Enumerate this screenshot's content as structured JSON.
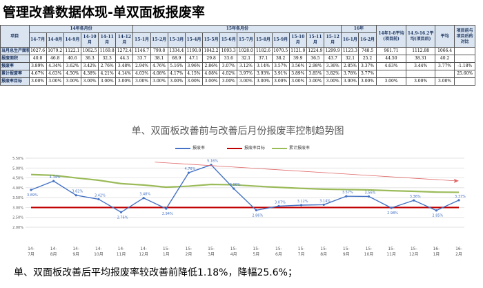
{
  "page_title": "管理改善数据体现-单双面板报废率",
  "table": {
    "item_header": "项目",
    "group_headers": [
      "14年各月份",
      "15年各月份",
      "16年",
      "14年1-8平均(项目前)",
      "14.9-16.2平均(项目后)",
      "平均",
      "项目前与项目后的对比"
    ],
    "months": [
      "14-7月",
      "14-8月",
      "14-9月",
      "14-10月",
      "14-11月",
      "14-12月",
      "15-1月",
      "15-2月",
      "15-3月",
      "15-4月",
      "15-5月",
      "15-6月",
      "15-7月",
      "15-8月",
      "15-9月",
      "15-10月",
      "15-11月",
      "15-12月",
      "16-1月",
      "16-2月"
    ],
    "rows": [
      {
        "label": "当月总生产面积",
        "cells": [
          "1027.6",
          "1079.2",
          "1122.1",
          "1062.5",
          "1169.8",
          "1272.4",
          "1146.7",
          "799.8",
          "1334.4",
          "1190.0",
          "1042.2",
          "1093.3",
          "1028.0",
          "1182.6",
          "1070.5",
          "1121.0",
          "1224.9",
          "1299.9",
          "1123.3",
          "748.5",
          "961.71",
          "1112.88",
          "1066.4",
          ""
        ]
      },
      {
        "label": "报废面积",
        "cells": [
          "40.0",
          "46.8",
          "40.6",
          "36.3",
          "32.3",
          "44.3",
          "33.7",
          "38.1",
          "68.9",
          "47.1",
          "29.8",
          "33.6",
          "32.1",
          "37.1",
          "38.2",
          "39.9",
          "36.5",
          "43.7",
          "32.1",
          "25.2",
          "44.50",
          "38.31",
          "40.2",
          ""
        ]
      },
      {
        "label": "报废率",
        "cells": [
          "3.89%",
          "4.34%",
          "3.62%",
          "3.42%",
          "2.76%",
          "3.48%",
          "2.94%",
          "4.76%",
          "5.16%",
          "3.96%",
          "2.86%",
          "3.07%",
          "3.12%",
          "3.14%",
          "3.57%",
          "3.56%",
          "2.98%",
          "3.36%",
          "2.85%",
          "3.37%",
          "4.63%",
          "3.44%",
          "3.77%",
          "-1.18%"
        ]
      },
      {
        "label": "累计报废率",
        "cells": [
          "4.67%",
          "4.63%",
          "4.50%",
          "4.38%",
          "4.21%",
          "4.14%",
          "4.03%",
          "4.08%",
          "4.17%",
          "4.15%",
          "4.08%",
          "4.02%",
          "3.97%",
          "3.93%",
          "3.91%",
          "3.89%",
          "3.85%",
          "3.82%",
          "3.78%",
          "3.77%",
          "",
          "",
          "",
          "25.60%"
        ]
      },
      {
        "label": "报废率目标",
        "cells": [
          "3.00%",
          "3.00%",
          "3.00%",
          "3.00%",
          "3.00%",
          "3.00%",
          "3.00%",
          "3.00%",
          "3.00%",
          "3.00%",
          "3.00%",
          "3.00%",
          "3.00%",
          "3.00%",
          "3.00%",
          "3.00%",
          "3.00%",
          "3.00%",
          "3.00%",
          "3.00%",
          "3.00%",
          "3.00%",
          "3.00%",
          ""
        ]
      }
    ]
  },
  "chart_data": {
    "type": "line",
    "title": "单、双面板改善前与改善后月份报废率控制趋势图",
    "categories": [
      "14-7月",
      "14-8月",
      "14-9月",
      "14-10月",
      "14-11月",
      "14-12月",
      "15-1月",
      "15-2月",
      "15-3月",
      "15-4月",
      "15-5月",
      "15-6月",
      "15-7月",
      "15-8月",
      "15-9月",
      "15-10月",
      "15-11月",
      "15-12月",
      "16-1月",
      "16-2月"
    ],
    "category_labels": [
      [
        "14-",
        "7月"
      ],
      [
        "14-",
        "8月"
      ],
      [
        "14-",
        "9月"
      ],
      [
        "14-",
        "10月"
      ],
      [
        "14-",
        "11月"
      ],
      [
        "14-",
        "12月"
      ],
      [
        "15-",
        "1月"
      ],
      [
        "15-",
        "2月"
      ],
      [
        "15-",
        "3月"
      ],
      [
        "15-",
        "4月"
      ],
      [
        "15-",
        "5月"
      ],
      [
        "15-",
        "6月"
      ],
      [
        "15-",
        "7月"
      ],
      [
        "15-",
        "8月"
      ],
      [
        "15-",
        "9月"
      ],
      [
        "15-",
        "10月"
      ],
      [
        "15-",
        "11月"
      ],
      [
        "15-",
        "12月"
      ],
      [
        "16-",
        "1月"
      ],
      [
        "16-",
        "2月"
      ]
    ],
    "series": [
      {
        "name": "报废率",
        "color": "#4472c4",
        "values": [
          3.89,
          4.34,
          3.62,
          3.42,
          2.76,
          3.48,
          2.94,
          4.76,
          5.16,
          3.96,
          2.86,
          3.07,
          3.12,
          3.14,
          3.57,
          3.56,
          2.98,
          3.36,
          2.85,
          3.37
        ],
        "labels": [
          "3.89%",
          "4.34%",
          "3.62%",
          "3.42%",
          "2.76%",
          "3.48%",
          "2.94%",
          "4.76%",
          "5.16%",
          "3.96%",
          "2.86%",
          "3.07%",
          "3.12%",
          "3.14%",
          "3.57%",
          "3.56%",
          "2.98%",
          "3.36%",
          "2.85%",
          "3.37%"
        ]
      },
      {
        "name": "报废率目标",
        "color": "#c00000",
        "values": [
          3.0,
          3.0,
          3.0,
          3.0,
          3.0,
          3.0,
          3.0,
          3.0,
          3.0,
          3.0,
          3.0,
          3.0,
          3.0,
          3.0,
          3.0,
          3.0,
          3.0,
          3.0,
          3.0,
          3.0
        ]
      },
      {
        "name": "累计报废率",
        "color": "#9bbb59",
        "values": [
          4.67,
          4.63,
          4.5,
          4.38,
          4.21,
          4.14,
          4.03,
          4.08,
          4.17,
          4.15,
          4.08,
          4.02,
          3.97,
          3.93,
          3.91,
          3.89,
          3.85,
          3.82,
          3.78,
          3.77
        ]
      }
    ],
    "trend_arrow": {
      "color": "#e06666",
      "from": 5.3,
      "to": 4.35
    },
    "ylim": [
      2.0,
      5.5
    ],
    "yticks": [
      2.0,
      2.5,
      3.0,
      3.5,
      4.0,
      4.5,
      5.0,
      5.5
    ],
    "ytick_labels": [
      "2.00%",
      "2.50%",
      "3.00%",
      "3.50%",
      "4.00%",
      "4.50%",
      "5.00%",
      "5.50%"
    ],
    "grid": true,
    "legend": "top"
  },
  "footer_text": "单、双面板改善后平均报废率较改善前降低1.18%，降幅25.6%；"
}
